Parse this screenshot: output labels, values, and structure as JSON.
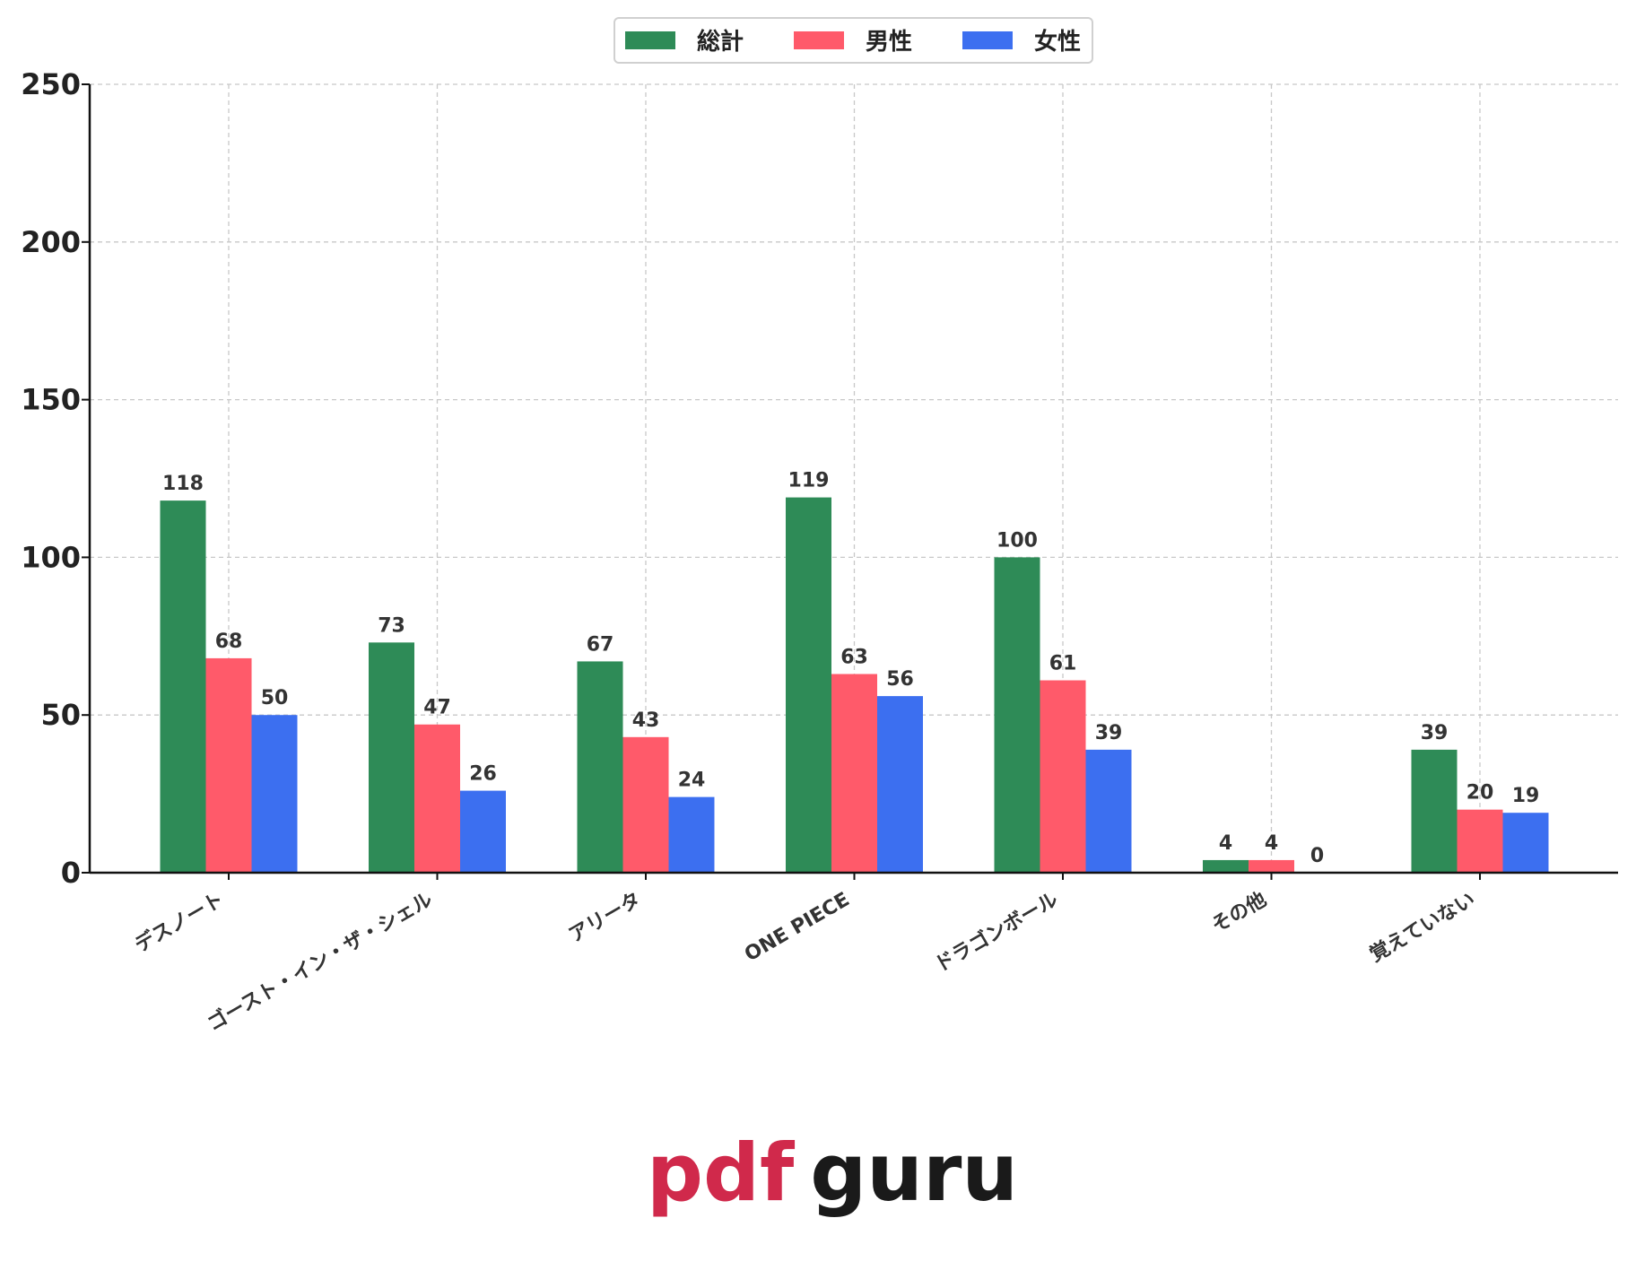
{
  "chart_data": {
    "type": "bar",
    "categories": [
      "デスノート",
      "ゴースト・イン・ザ・シェル",
      "アリータ",
      "ONE PIECE",
      "ドラゴンボール",
      "その他",
      "覚えていない"
    ],
    "series": [
      {
        "name": "総計",
        "color": "#2e8b57",
        "values": [
          118,
          73,
          67,
          119,
          100,
          4,
          39
        ]
      },
      {
        "name": "男性",
        "color": "#ff5a6a",
        "values": [
          68,
          47,
          43,
          63,
          61,
          4,
          20
        ]
      },
      {
        "name": "女性",
        "color": "#3c6ff0",
        "values": [
          50,
          26,
          24,
          56,
          39,
          0,
          19
        ]
      }
    ],
    "ylim": [
      0,
      250
    ],
    "yticks": [
      0,
      50,
      100,
      150,
      200,
      250
    ],
    "grid": true,
    "legend_position": "top-center",
    "xlabel": "",
    "ylabel": "",
    "title": ""
  },
  "watermark": {
    "part1": "pdf",
    "part2": "guru",
    "color1": "#d0294b",
    "color2": "#1a1a1a"
  }
}
